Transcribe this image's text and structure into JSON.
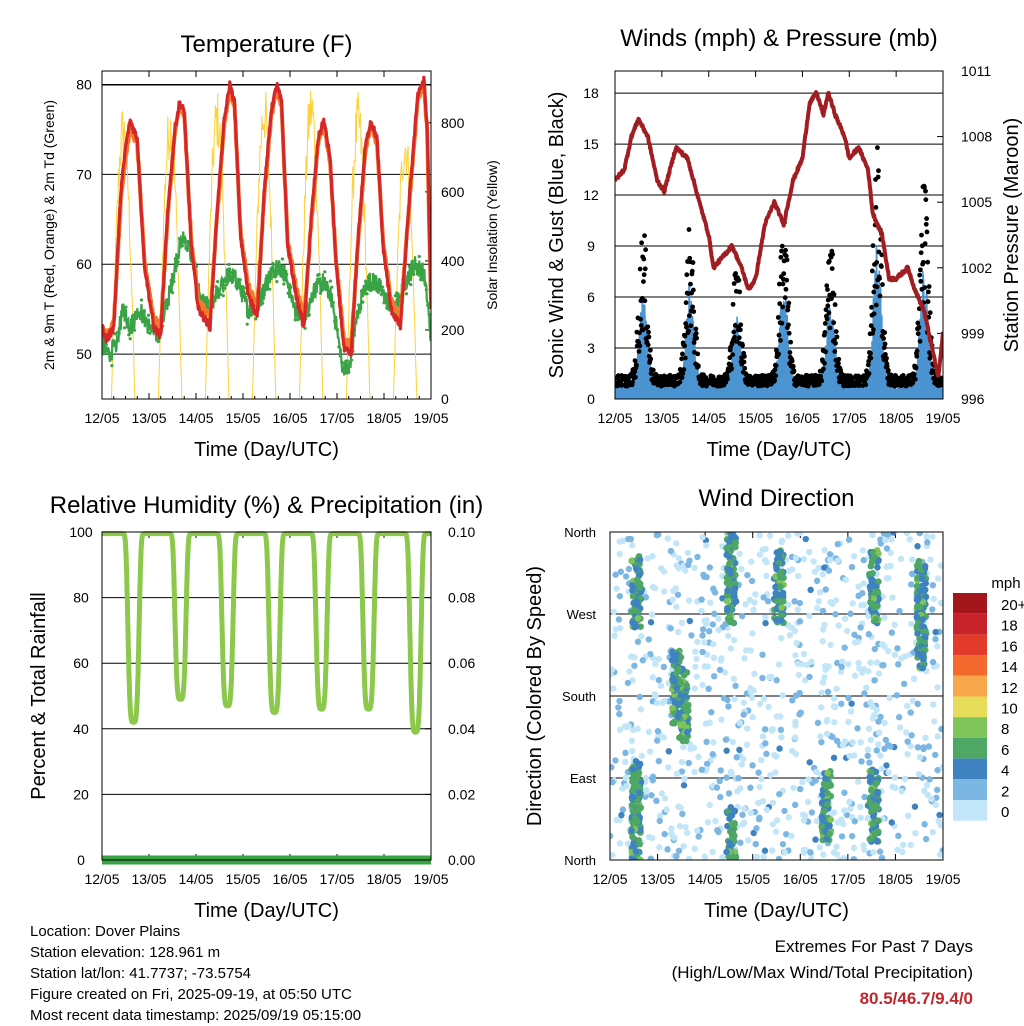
{
  "figure": {
    "info": {
      "location": "Location: Dover Plains",
      "elevation": "Station elevation: 128.961 m",
      "latlon": "Station lat/lon: 41.7737; -73.5754",
      "created": "Figure created on Fri, 2025-09-19, at 05:50 UTC",
      "latest": "Most recent data timestamp: 2025/09/19 05:15:00"
    },
    "extremes": {
      "title": "Extremes For Past 7 Days",
      "subtitle": "(High/Low/Max Wind/Total Precipitation)",
      "values": "80.5/46.7/9.4/0",
      "color": "#c0272d"
    }
  },
  "chart_data": [
    {
      "type": "line",
      "title": "Temperature (F)",
      "xlabel": "Time (Day/UTC)",
      "ylabel": "2m & 9m T (Red, Orange) & 2m Td (Green)",
      "y2label": "Solar Insolation (Yellow)",
      "x_ticks": [
        "12/05",
        "13/05",
        "14/05",
        "15/05",
        "16/05",
        "17/05",
        "18/05",
        "19/05"
      ],
      "ylim": [
        45,
        81.5
      ],
      "y_ticks": [
        50,
        60,
        70,
        80
      ],
      "y2lim": [
        0,
        950
      ],
      "y2_ticks": [
        0,
        200,
        400,
        600,
        800
      ],
      "grid": true,
      "series": [
        {
          "name": "2m T",
          "color": "#d62728",
          "axis": "left",
          "points": [
            [
              0,
              53
            ],
            [
              0.1,
              51.5
            ],
            [
              0.25,
              53
            ],
            [
              0.4,
              68
            ],
            [
              0.5,
              73
            ],
            [
              0.6,
              76
            ],
            [
              0.75,
              74
            ],
            [
              0.9,
              60
            ],
            [
              1.1,
              53
            ],
            [
              1.25,
              52
            ],
            [
              1.4,
              66
            ],
            [
              1.55,
              75
            ],
            [
              1.65,
              78
            ],
            [
              1.75,
              77
            ],
            [
              1.9,
              62
            ],
            [
              2.05,
              55
            ],
            [
              2.3,
              53
            ],
            [
              2.45,
              66
            ],
            [
              2.6,
              76
            ],
            [
              2.72,
              80
            ],
            [
              2.82,
              78
            ],
            [
              2.95,
              63
            ],
            [
              3.1,
              57
            ],
            [
              3.3,
              54
            ],
            [
              3.45,
              68
            ],
            [
              3.6,
              77
            ],
            [
              3.72,
              80
            ],
            [
              3.82,
              78
            ],
            [
              3.95,
              62
            ],
            [
              4.15,
              56
            ],
            [
              4.3,
              53
            ],
            [
              4.45,
              65
            ],
            [
              4.6,
              74
            ],
            [
              4.72,
              76
            ],
            [
              4.85,
              72
            ],
            [
              4.98,
              60
            ],
            [
              5.15,
              50.5
            ],
            [
              5.3,
              50
            ],
            [
              5.45,
              63
            ],
            [
              5.6,
              73
            ],
            [
              5.72,
              76
            ],
            [
              5.85,
              74
            ],
            [
              5.98,
              62
            ],
            [
              6.15,
              55
            ],
            [
              6.35,
              53
            ],
            [
              6.55,
              68
            ],
            [
              6.72,
              79
            ],
            [
              6.85,
              80.5
            ],
            [
              6.92,
              75
            ],
            [
              7.0,
              55
            ]
          ]
        },
        {
          "name": "9m T",
          "color": "#f37a2a",
          "axis": "left",
          "points": [
            [
              0,
              53
            ],
            [
              0.1,
              52
            ],
            [
              0.25,
              53.5
            ],
            [
              0.4,
              67
            ],
            [
              0.5,
              72
            ],
            [
              0.6,
              75
            ],
            [
              0.75,
              73.5
            ],
            [
              0.9,
              60.5
            ],
            [
              1.1,
              54
            ],
            [
              1.25,
              53
            ],
            [
              1.4,
              65.5
            ],
            [
              1.55,
              74.5
            ],
            [
              1.65,
              77.5
            ],
            [
              1.75,
              76.5
            ],
            [
              1.9,
              62.5
            ],
            [
              2.05,
              56
            ],
            [
              2.3,
              54
            ],
            [
              2.45,
              65.5
            ],
            [
              2.6,
              75.5
            ],
            [
              2.72,
              79.5
            ],
            [
              2.82,
              77.5
            ],
            [
              2.95,
              63.5
            ],
            [
              3.1,
              58
            ],
            [
              3.3,
              55
            ],
            [
              3.45,
              67.5
            ],
            [
              3.6,
              76.5
            ],
            [
              3.72,
              79.5
            ],
            [
              3.82,
              77.5
            ],
            [
              3.95,
              62.5
            ],
            [
              4.15,
              57
            ],
            [
              4.3,
              54
            ],
            [
              4.45,
              64.5
            ],
            [
              4.6,
              73.5
            ],
            [
              4.72,
              75.5
            ],
            [
              4.85,
              71.5
            ],
            [
              4.98,
              60.5
            ],
            [
              5.15,
              51.5
            ],
            [
              5.3,
              51
            ],
            [
              5.45,
              62.5
            ],
            [
              5.6,
              72.5
            ],
            [
              5.72,
              75.5
            ],
            [
              5.85,
              73.5
            ],
            [
              5.98,
              62.5
            ],
            [
              6.15,
              56
            ],
            [
              6.35,
              54
            ],
            [
              6.55,
              67.5
            ],
            [
              6.72,
              78.5
            ],
            [
              6.85,
              80
            ],
            [
              6.92,
              74.5
            ],
            [
              7.0,
              55.5
            ]
          ]
        },
        {
          "name": "2m Td",
          "color": "#3aa346",
          "axis": "left",
          "points": [
            [
              0,
              51
            ],
            [
              0.15,
              50
            ],
            [
              0.3,
              51
            ],
            [
              0.45,
              55
            ],
            [
              0.6,
              53
            ],
            [
              0.8,
              55
            ],
            [
              1.0,
              53
            ],
            [
              1.2,
              52
            ],
            [
              1.45,
              57
            ],
            [
              1.6,
              61
            ],
            [
              1.75,
              63
            ],
            [
              1.9,
              61
            ],
            [
              2.1,
              56
            ],
            [
              2.3,
              55
            ],
            [
              2.5,
              57
            ],
            [
              2.7,
              59
            ],
            [
              2.9,
              58
            ],
            [
              3.1,
              55
            ],
            [
              3.3,
              55
            ],
            [
              3.5,
              58
            ],
            [
              3.7,
              60
            ],
            [
              3.9,
              59
            ],
            [
              4.1,
              55
            ],
            [
              4.3,
              54
            ],
            [
              4.5,
              57
            ],
            [
              4.7,
              58
            ],
            [
              4.9,
              56
            ],
            [
              5.1,
              49
            ],
            [
              5.25,
              48
            ],
            [
              5.45,
              55
            ],
            [
              5.65,
              58
            ],
            [
              5.85,
              58
            ],
            [
              6.05,
              56
            ],
            [
              6.25,
              55
            ],
            [
              6.45,
              58
            ],
            [
              6.65,
              60
            ],
            [
              6.85,
              59
            ],
            [
              7.0,
              52
            ]
          ]
        },
        {
          "name": "Solar Insolation",
          "color": "#fbd23a",
          "axis": "right",
          "days": [
            0,
            1,
            2,
            3,
            4,
            5,
            6
          ],
          "sunrise_offset": 0.42,
          "sunset_offset": 0.97,
          "peaks": [
            860,
            870,
            900,
            920,
            930,
            890,
            810
          ]
        }
      ]
    },
    {
      "type": "scatter",
      "title": "Winds (mph) & Pressure (mb)",
      "xlabel": "Time (Day/UTC)",
      "ylabel": "Sonic Wind & Gust (Blue, Black)",
      "y2label": "Station Pressure (Maroon)",
      "x_ticks": [
        "12/05",
        "13/05",
        "14/05",
        "15/05",
        "16/05",
        "17/05",
        "18/05",
        "19/05"
      ],
      "ylim": [
        0,
        19.3
      ],
      "y_ticks": [
        0,
        3,
        6,
        9,
        12,
        15,
        18
      ],
      "y2lim": [
        996,
        1011
      ],
      "y2_ticks": [
        996,
        999,
        1002,
        1005,
        1008,
        1011
      ],
      "grid": true,
      "wind_peaks": [
        {
          "day": 0,
          "sust": 6,
          "gust": 10
        },
        {
          "day": 1,
          "sust": 7,
          "gust": 10
        },
        {
          "day": 2,
          "sust": 5,
          "gust": 8
        },
        {
          "day": 3,
          "sust": 7,
          "gust": 11
        },
        {
          "day": 4,
          "sust": 6,
          "gust": 10
        },
        {
          "day": 5,
          "sust": 9.4,
          "gust": 15
        },
        {
          "day": 6,
          "sust": 8,
          "gust": 13
        },
        {
          "day": 7,
          "sust": 6,
          "gust": 11
        }
      ],
      "series": [
        {
          "name": "Sonic Wind",
          "color": "#4c94d1"
        },
        {
          "name": "Gust",
          "color": "#000000"
        },
        {
          "name": "Station Pressure",
          "color": "#a01d22",
          "points": [
            [
              0,
              1006
            ],
            [
              0.2,
              1006.5
            ],
            [
              0.35,
              1008
            ],
            [
              0.5,
              1008.8
            ],
            [
              0.7,
              1008
            ],
            [
              0.9,
              1006
            ],
            [
              1.05,
              1005.5
            ],
            [
              1.3,
              1007.5
            ],
            [
              1.55,
              1007
            ],
            [
              1.8,
              1005
            ],
            [
              2.0,
              1003.5
            ],
            [
              2.1,
              1002
            ],
            [
              2.3,
              1002.5
            ],
            [
              2.5,
              1003
            ],
            [
              2.7,
              1002
            ],
            [
              2.85,
              1001
            ],
            [
              3.0,
              1001.5
            ],
            [
              3.2,
              1004
            ],
            [
              3.4,
              1005
            ],
            [
              3.6,
              1004
            ],
            [
              3.8,
              1006
            ],
            [
              4.0,
              1007
            ],
            [
              4.15,
              1009.5
            ],
            [
              4.3,
              1010
            ],
            [
              4.45,
              1009
            ],
            [
              4.55,
              1010
            ],
            [
              4.7,
              1009
            ],
            [
              4.9,
              1008
            ],
            [
              5.0,
              1007
            ],
            [
              5.2,
              1007.5
            ],
            [
              5.4,
              1006.5
            ],
            [
              5.5,
              1004.5
            ],
            [
              5.7,
              1003.5
            ],
            [
              5.85,
              1001.5
            ],
            [
              6.0,
              1001.5
            ],
            [
              6.25,
              1002
            ],
            [
              6.4,
              1001
            ],
            [
              6.6,
              1000
            ],
            [
              6.8,
              998
            ],
            [
              6.9,
              997
            ],
            [
              7.0,
              999
            ]
          ]
        }
      ]
    },
    {
      "type": "line",
      "title": "Relative Humidity (%) & Precipitation (in)",
      "xlabel": "Time (Day/UTC)",
      "ylabel": "Percent & Total Rainfall",
      "x_ticks": [
        "12/05",
        "13/05",
        "14/05",
        "15/05",
        "16/05",
        "17/05",
        "18/05",
        "19/05"
      ],
      "ylim": [
        0,
        100
      ],
      "y_ticks": [
        0,
        20,
        40,
        60,
        80,
        100
      ],
      "y2lim": [
        0,
        0.1
      ],
      "y2_ticks": [
        "0.00",
        "0.02",
        "0.04",
        "0.06",
        "0.08",
        "0.10"
      ],
      "grid": true,
      "series": [
        {
          "name": "Relative Humidity",
          "color": "#8cc84b",
          "min_rh": [
            42,
            49,
            47,
            45,
            46,
            46,
            39
          ],
          "min_offset": 0.72
        },
        {
          "name": "Precipitation",
          "color": "#3aa346",
          "values": [
            0,
            0,
            0,
            0,
            0,
            0,
            0,
            0
          ]
        }
      ]
    },
    {
      "type": "scatter",
      "title": "Wind Direction",
      "xlabel": "Time (Day/UTC)",
      "ylabel": "Direction (Colored By Speed)",
      "x_ticks": [
        "12/05",
        "13/05",
        "14/05",
        "15/05",
        "16/05",
        "17/05",
        "18/05",
        "19/05"
      ],
      "y_ticks": [
        "North",
        "East",
        "South",
        "West",
        "North"
      ],
      "ylim": [
        0,
        360
      ],
      "grid": true,
      "legend": {
        "title": "mph",
        "placement": "right",
        "labels": [
          "20+",
          "18",
          "16",
          "14",
          "12",
          "10",
          "8",
          "6",
          "4",
          "2",
          "0"
        ],
        "colors": [
          "#a3161b",
          "#c8232a",
          "#e23b2b",
          "#f26a2e",
          "#f7a64a",
          "#e5dd5a",
          "#7fc35b",
          "#4ea765",
          "#3e82c0",
          "#7cb6e3",
          "#c2e6f8"
        ]
      }
    }
  ]
}
